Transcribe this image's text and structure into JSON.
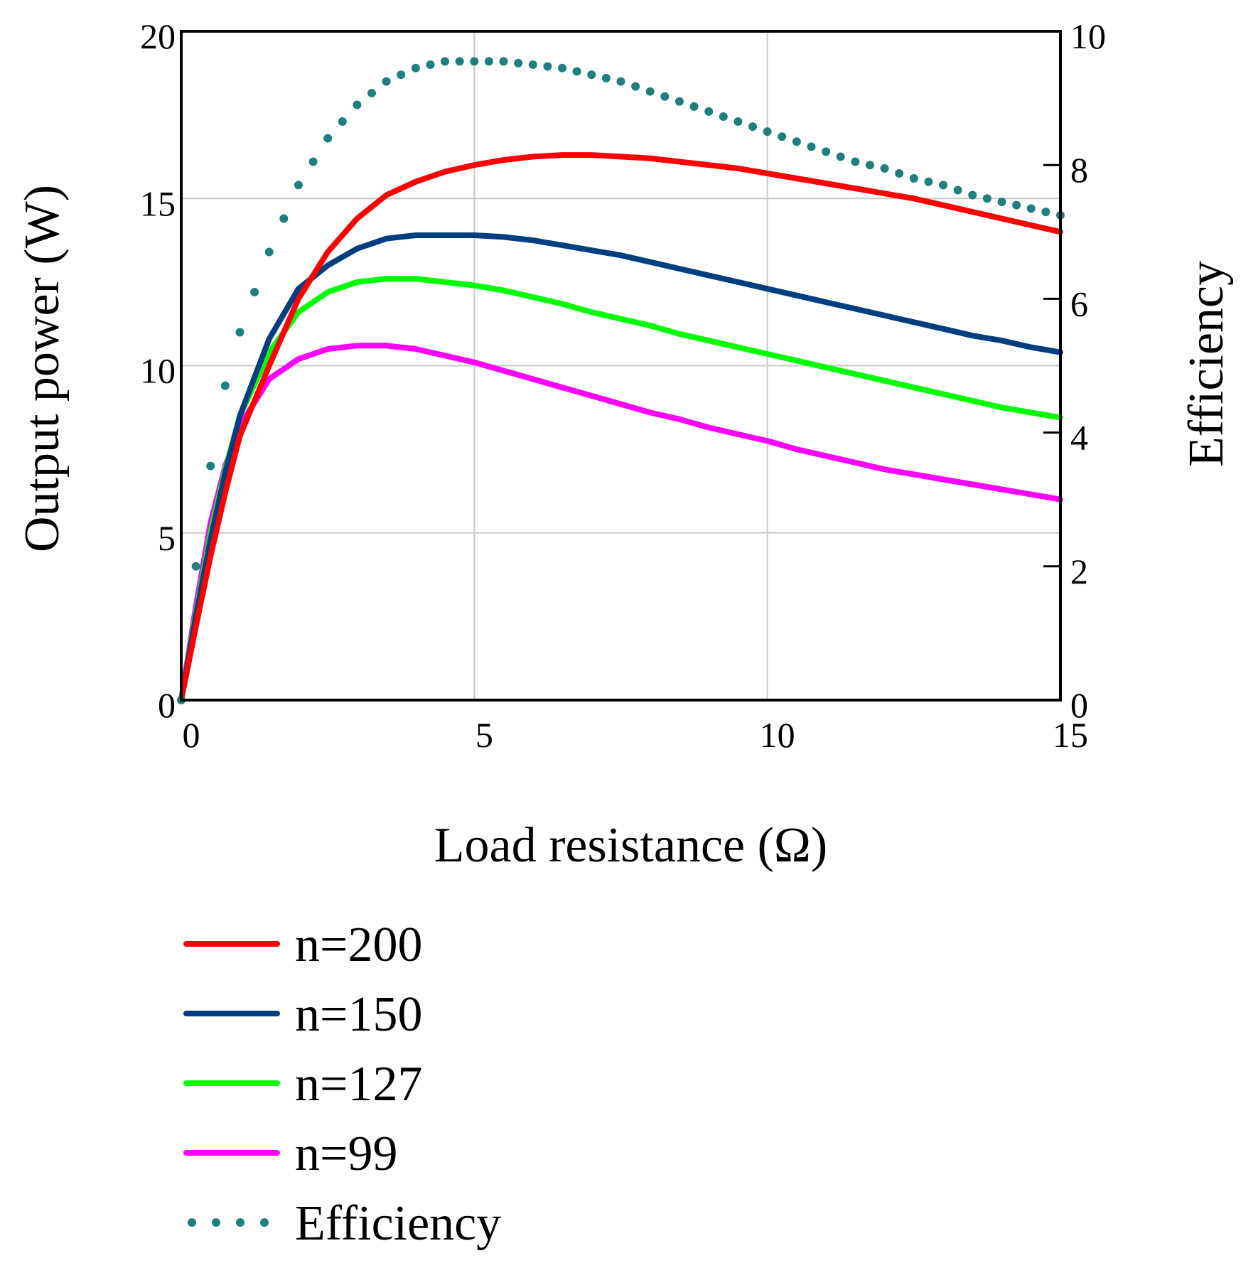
{
  "chart_data": {
    "type": "line",
    "title": "",
    "xlabel": "Load resistance (Ω)",
    "ylabel": "Output power (W)",
    "y2label": "Efficiency",
    "xlim": [
      0,
      15
    ],
    "ylim": [
      0,
      20
    ],
    "y2lim": [
      0,
      10
    ],
    "grid": true,
    "legend_position": "bottom",
    "x_ticks": [
      "0",
      "5",
      "10",
      "15"
    ],
    "y_ticks": [
      "0",
      "5",
      "10",
      "15",
      "20"
    ],
    "y2_ticks": [
      "0",
      "2",
      "4",
      "6",
      "8",
      "10"
    ],
    "x": [
      0,
      0.25,
      0.5,
      0.75,
      1,
      1.5,
      2,
      2.5,
      3,
      3.5,
      4,
      4.5,
      5,
      5.5,
      6,
      6.5,
      7,
      7.5,
      8,
      8.5,
      9,
      9.5,
      10,
      10.5,
      11,
      11.5,
      12,
      12.5,
      13,
      13.5,
      14,
      14.5,
      15
    ],
    "series": [
      {
        "name": "n=200",
        "axis": "left",
        "color": "#ff0000",
        "style": "solid",
        "values": [
          0,
          2.2,
          4.3,
          6.2,
          7.9,
          10.0,
          12.0,
          13.4,
          14.4,
          15.1,
          15.5,
          15.8,
          16.0,
          16.15,
          16.25,
          16.3,
          16.3,
          16.25,
          16.2,
          16.1,
          16.0,
          15.9,
          15.75,
          15.6,
          15.45,
          15.3,
          15.15,
          15.0,
          14.8,
          14.6,
          14.4,
          14.2,
          14.0
        ]
      },
      {
        "name": "n=150",
        "axis": "left",
        "color": "#003f7f",
        "style": "solid",
        "values": [
          0,
          2.5,
          4.8,
          6.8,
          8.5,
          10.8,
          12.3,
          13.0,
          13.5,
          13.8,
          13.9,
          13.9,
          13.9,
          13.85,
          13.75,
          13.6,
          13.45,
          13.3,
          13.1,
          12.9,
          12.7,
          12.5,
          12.3,
          12.1,
          11.9,
          11.7,
          11.5,
          11.3,
          11.1,
          10.9,
          10.75,
          10.55,
          10.4
        ]
      },
      {
        "name": "n=127",
        "axis": "left",
        "color": "#00ff00",
        "style": "solid",
        "values": [
          0,
          2.6,
          5.0,
          6.9,
          8.5,
          10.4,
          11.6,
          12.2,
          12.5,
          12.6,
          12.6,
          12.5,
          12.4,
          12.25,
          12.05,
          11.85,
          11.6,
          11.4,
          11.2,
          10.95,
          10.75,
          10.55,
          10.35,
          10.15,
          9.95,
          9.75,
          9.55,
          9.35,
          9.15,
          8.95,
          8.75,
          8.6,
          8.45
        ]
      },
      {
        "name": "n=99",
        "axis": "left",
        "color": "#ff00ff",
        "style": "solid",
        "values": [
          0,
          2.8,
          5.3,
          7.0,
          8.2,
          9.6,
          10.2,
          10.5,
          10.6,
          10.6,
          10.5,
          10.3,
          10.1,
          9.85,
          9.6,
          9.35,
          9.1,
          8.85,
          8.6,
          8.4,
          8.15,
          7.95,
          7.75,
          7.5,
          7.3,
          7.1,
          6.9,
          6.75,
          6.6,
          6.45,
          6.3,
          6.15,
          6.0
        ]
      },
      {
        "name": "Efficiency",
        "axis": "right",
        "color": "#1f7f7f",
        "style": "dotted",
        "values": [
          0,
          2.0,
          3.5,
          4.7,
          5.5,
          6.7,
          7.7,
          8.4,
          8.9,
          9.25,
          9.45,
          9.55,
          9.55,
          9.55,
          9.5,
          9.45,
          9.35,
          9.25,
          9.1,
          8.95,
          8.8,
          8.65,
          8.5,
          8.35,
          8.2,
          8.05,
          7.95,
          7.8,
          7.7,
          7.55,
          7.45,
          7.35,
          7.25
        ]
      }
    ]
  }
}
